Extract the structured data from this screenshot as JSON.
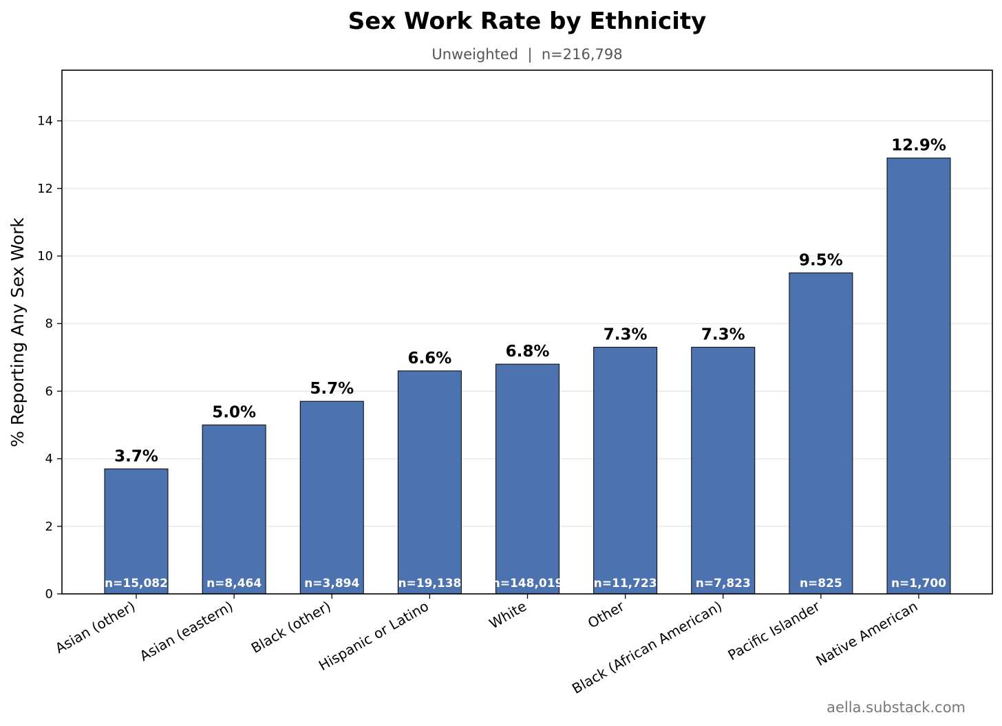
{
  "chart_data": {
    "type": "bar",
    "title": "Sex Work Rate by Ethnicity",
    "subtitle": "Unweighted  |  n=216,798",
    "xlabel": "",
    "ylabel": "% Reporting Any Sex Work",
    "ylim": [
      0,
      15.5
    ],
    "yticks": [
      0,
      2,
      4,
      6,
      8,
      10,
      12,
      14
    ],
    "grid": true,
    "categories": [
      "Asian (other)",
      "Asian (eastern)",
      "Black (other)",
      "Hispanic or Latino",
      "White",
      "Other",
      "Black (African American)",
      "Pacific Islander",
      "Native American"
    ],
    "values": [
      3.7,
      5.0,
      5.7,
      6.6,
      6.8,
      7.3,
      7.3,
      9.5,
      12.9
    ],
    "value_labels": [
      "3.7%",
      "5.0%",
      "5.7%",
      "6.6%",
      "6.8%",
      "7.3%",
      "7.3%",
      "9.5%",
      "12.9%"
    ],
    "n_labels": [
      "n=15,082",
      "n=8,464",
      "n=3,894",
      "n=19,138",
      "n=148,019",
      "n=11,723",
      "n=7,823",
      "n=825",
      "n=1,700"
    ],
    "bar_color": "#4c72b0",
    "edge_color": "#000000",
    "grid_color": "#e6e6e6"
  },
  "footer": {
    "watermark": "aella.substack.com"
  }
}
